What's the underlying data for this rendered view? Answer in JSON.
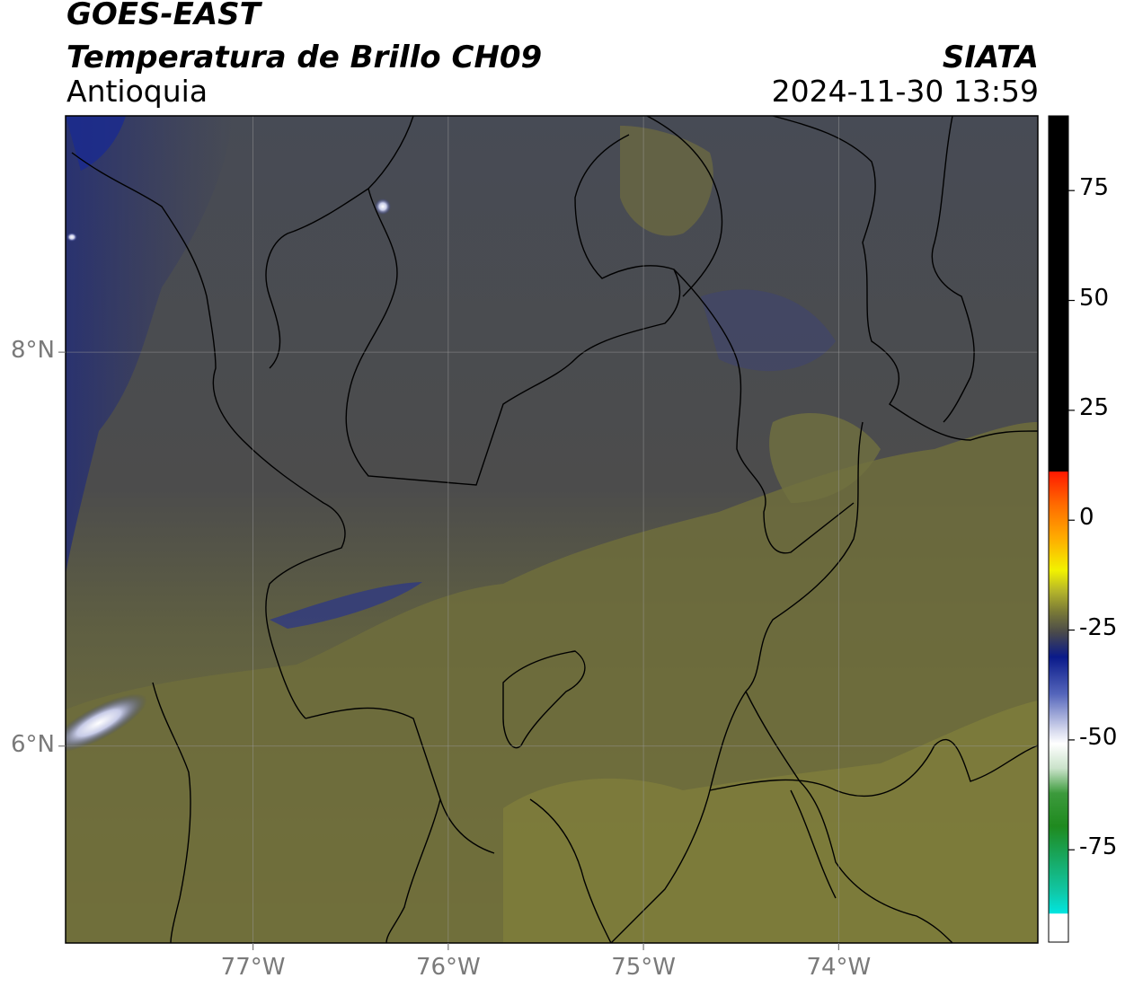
{
  "header": {
    "satellite": "GOES-EAST",
    "product": "Temperatura de Brillo CH09",
    "region": "Antioquia",
    "brand": "SIATA",
    "timestamp": "2024-11-30 13:59"
  },
  "map": {
    "lon_range": [
      -77.96,
      -72.98
    ],
    "lat_range": [
      5.0,
      9.2
    ],
    "lon_ticks": [
      {
        "value": -77,
        "label": "77°W"
      },
      {
        "value": -76,
        "label": "76°W"
      },
      {
        "value": -75,
        "label": "75°W"
      },
      {
        "value": -74,
        "label": "74°W"
      }
    ],
    "lat_ticks": [
      {
        "value": 8,
        "label": "8°N"
      },
      {
        "value": 6,
        "label": "6°N"
      }
    ],
    "grid": true
  },
  "colorbar": {
    "range": [
      -96,
      92
    ],
    "ticks": [
      {
        "value": 75,
        "label": "75"
      },
      {
        "value": 50,
        "label": "50"
      },
      {
        "value": 25,
        "label": "25"
      },
      {
        "value": 0,
        "label": "0"
      },
      {
        "value": -25,
        "label": "-25"
      },
      {
        "value": -50,
        "label": "-50"
      },
      {
        "value": -75,
        "label": "-75"
      }
    ],
    "colors": {
      "hot": "#000000",
      "red": "#ff1a00",
      "orange": "#ff9900",
      "yellow": "#f2f200",
      "olive": "#7a7a36",
      "gray": "#4a4a4a",
      "navy": "#0a1a8a",
      "white": "#ffffff",
      "green": "#1f8a1f",
      "cyan": "#00e5e0"
    }
  }
}
